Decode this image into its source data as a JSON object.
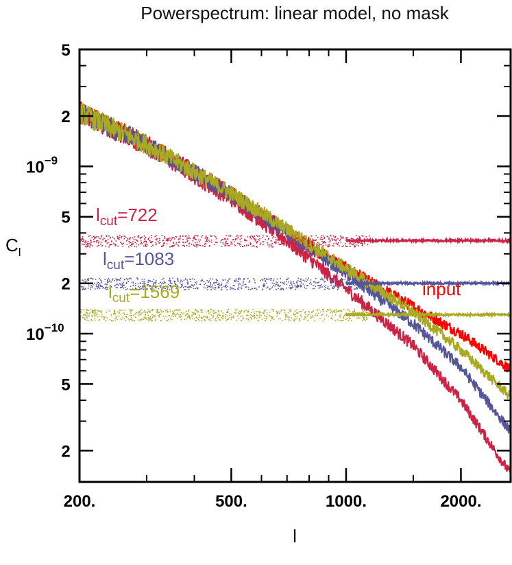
{
  "chart_data": {
    "type": "line",
    "title": "Powerspectrum: linear model, no mask",
    "xlabel": "l",
    "ylabel": "C",
    "ylabel_subscript": "l",
    "xscale": "log",
    "yscale": "log",
    "xlim": [
      200,
      2700
    ],
    "ylim": [
      1.3e-11,
      5e-09
    ],
    "x_ticks": [
      {
        "value": 200,
        "label": "200."
      },
      {
        "value": 500,
        "label": "500."
      },
      {
        "value": 1000,
        "label": "1000."
      },
      {
        "value": 2000,
        "label": "2000."
      }
    ],
    "y_ticks": [
      {
        "value": 5e-09,
        "label": "5",
        "exp": ""
      },
      {
        "value": 2e-09,
        "label": "2",
        "exp": ""
      },
      {
        "value": 1e-09,
        "label": "10",
        "exp": "−9"
      },
      {
        "value": 5e-10,
        "label": "5",
        "exp": ""
      },
      {
        "value": 2e-10,
        "label": "2",
        "exp": ""
      },
      {
        "value": 1e-10,
        "label": "10",
        "exp": "−10"
      },
      {
        "value": 5e-11,
        "label": "5",
        "exp": ""
      },
      {
        "value": 2e-11,
        "label": "2",
        "exp": ""
      }
    ],
    "series": [
      {
        "name": "input",
        "color": "#ff0000",
        "x": [
          200,
          300,
          500,
          700,
          1000,
          1500,
          2000,
          2700
        ],
        "y": [
          2.1e-09,
          1.35e-09,
          6.8e-10,
          4.1e-10,
          2.45e-10,
          1.45e-10,
          1e-10,
          6.1e-11
        ]
      },
      {
        "name": "lcut=722",
        "color": "#cc2244",
        "x": [
          200,
          300,
          500,
          700,
          1000,
          1500,
          2000,
          2700
        ],
        "y": [
          2.1e-09,
          1.33e-09,
          6.4e-10,
          3.6e-10,
          1.85e-10,
          8.5e-11,
          4e-11,
          1.45e-11
        ]
      },
      {
        "name": "lcut=1083",
        "color": "#555599",
        "x": [
          200,
          300,
          500,
          700,
          1000,
          1500,
          2000,
          2700
        ],
        "y": [
          2.1e-09,
          1.35e-09,
          6.8e-10,
          4e-10,
          2.3e-10,
          1.15e-10,
          6.3e-11,
          2.6e-11
        ]
      },
      {
        "name": "lcut=1569",
        "color": "#aaaa22",
        "x": [
          200,
          300,
          500,
          700,
          1000,
          1500,
          2000,
          2700
        ],
        "y": [
          2.1e-09,
          1.35e-09,
          6.9e-10,
          4.2e-10,
          2.45e-10,
          1.35e-10,
          8e-11,
          4.2e-11
        ]
      }
    ],
    "noise_levels": [
      {
        "name": "lcut=722",
        "color": "#cc2244",
        "value": 3.6e-10
      },
      {
        "name": "lcut=1083",
        "color": "#555599",
        "value": 2e-10
      },
      {
        "name": "lcut=1569",
        "color": "#aaaa22",
        "value": 1.3e-10
      }
    ],
    "annotations": [
      {
        "base": "l",
        "sub": "cut",
        "rest": "=722",
        "color": "#cc2244"
      },
      {
        "base": "l",
        "sub": "cut",
        "rest": "=1083",
        "color": "#555599"
      },
      {
        "base": "l",
        "sub": "cut",
        "rest": "=1569",
        "color": "#aaaa22"
      },
      {
        "base": "input",
        "sub": "",
        "rest": "",
        "color": "#ff0000"
      }
    ]
  }
}
